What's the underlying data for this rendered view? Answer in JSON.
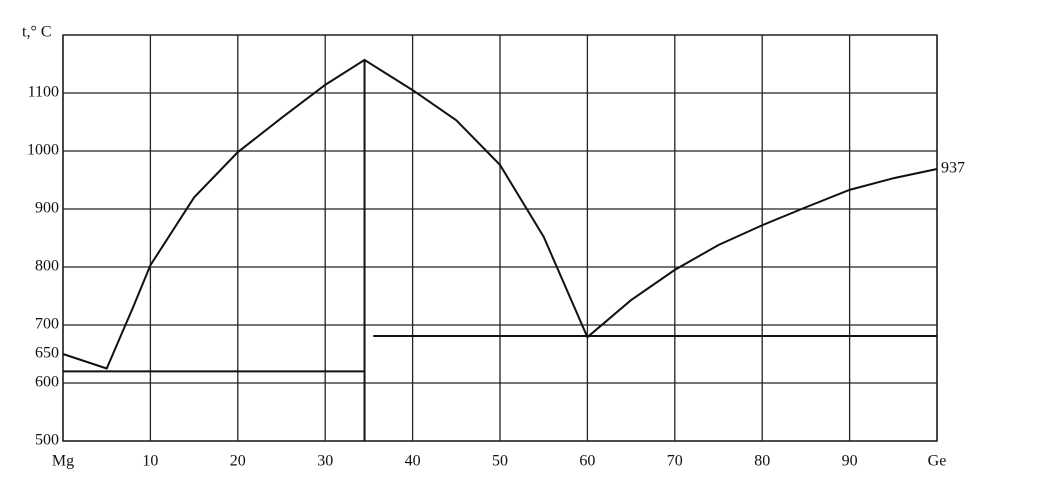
{
  "chart_data": {
    "type": "line",
    "ylabel": "t,° C",
    "annotation": "937",
    "xlim": [
      0,
      100
    ],
    "ylim": [
      500,
      1200
    ],
    "xticks": [
      {
        "value": 0,
        "label": "Mg"
      },
      10,
      20,
      30,
      40,
      50,
      60,
      70,
      80,
      90,
      {
        "value": 100,
        "label": "Ge"
      }
    ],
    "yticks": [
      500,
      600,
      650,
      700,
      800,
      900,
      1000,
      1100
    ],
    "grid": true,
    "color": "#111111",
    "series": [
      {
        "x": [
          0,
          5,
          8,
          10,
          15,
          20,
          25,
          30,
          34.5,
          40,
          45,
          50,
          55,
          60,
          65,
          70,
          75,
          80,
          85,
          90,
          95,
          100
        ],
        "values": [
          650,
          625,
          730,
          803,
          920,
          998,
          1057,
          1114,
          1157,
          1105,
          1053,
          976,
          852,
          679,
          743,
          795,
          838,
          872,
          903,
          933,
          953,
          969
        ]
      },
      {
        "x": [
          0,
          34.5
        ],
        "values": [
          620,
          620
        ]
      },
      {
        "x": [
          35.5,
          100
        ],
        "values": [
          681,
          681
        ]
      },
      {
        "x": [
          34.5,
          34.5
        ],
        "values": [
          500,
          1157
        ]
      }
    ]
  }
}
